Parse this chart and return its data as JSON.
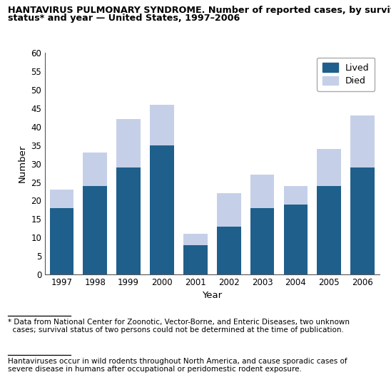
{
  "years": [
    1997,
    1998,
    1999,
    2000,
    2001,
    2002,
    2003,
    2004,
    2005,
    2006
  ],
  "lived": [
    18,
    24,
    29,
    35,
    8,
    13,
    18,
    19,
    24,
    29
  ],
  "died": [
    5,
    9,
    13,
    11,
    3,
    9,
    9,
    5,
    10,
    14
  ],
  "color_lived": "#1f5f8b",
  "color_died": "#c5d0e8",
  "title_line1": "HANTAVIRUS PULMONARY SYNDROME. Number of reported cases, by survival",
  "title_line2": "status* and year — United States, 1997–2006",
  "xlabel": "Year",
  "ylabel": "Number",
  "ylim": [
    0,
    60
  ],
  "yticks": [
    0,
    5,
    10,
    15,
    20,
    25,
    30,
    35,
    40,
    45,
    50,
    55,
    60
  ],
  "legend_lived": "Lived",
  "legend_died": "Died",
  "footnote1": "* Data from National Center for Zoonotic, Vector-Borne, and Enteric Diseases, two unknown\n  cases; survival status of two persons could not be determined at the time of publication.",
  "footnote2": "Hantaviruses occur in wild rodents throughout North America, and cause sporadic cases of\nsevere disease in humans after occupational or peridomestic rodent exposure."
}
